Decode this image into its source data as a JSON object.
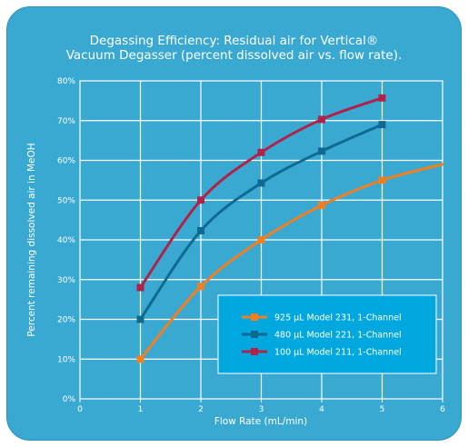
{
  "chart_data": {
    "type": "line",
    "title_line1": "Degassing Efficiency: Residual air for Vertical®",
    "title_line2": "Vacuum Degasser (percent dissolved air vs. flow rate).",
    "xlabel": "Flow Rate (mL/min)",
    "ylabel": "Percent remaining dissolved air in MeOH",
    "xlim": [
      0,
      6
    ],
    "ylim": [
      0,
      80
    ],
    "x_ticks": [
      "0",
      "1",
      "2",
      "3",
      "4",
      "5",
      "6"
    ],
    "y_ticks": [
      "0%",
      "10%",
      "20%",
      "30%",
      "40%",
      "50%",
      "60%",
      "70%",
      "80%"
    ],
    "grid": true,
    "legend_position": "lower-right",
    "series": [
      {
        "name": "925 µL Model 231, 1-Channel",
        "color": "#f07f22",
        "x": [
          1,
          2,
          3,
          4,
          5
        ],
        "values": [
          10,
          28.3,
          40,
          48.7,
          55
        ],
        "curve_extends_to": [
          6,
          59
        ]
      },
      {
        "name": "480 µL Model 221, 1-Channel",
        "color": "#0f6a92",
        "x": [
          1,
          2,
          3,
          4,
          5
        ],
        "values": [
          20,
          42.3,
          54.3,
          62.3,
          69
        ]
      },
      {
        "name": "100 µL Model 211, 1-Channel",
        "color": "#b1224a",
        "x": [
          1,
          2,
          3,
          4,
          5
        ],
        "values": [
          28,
          50,
          62,
          70.3,
          75.7
        ]
      }
    ]
  }
}
